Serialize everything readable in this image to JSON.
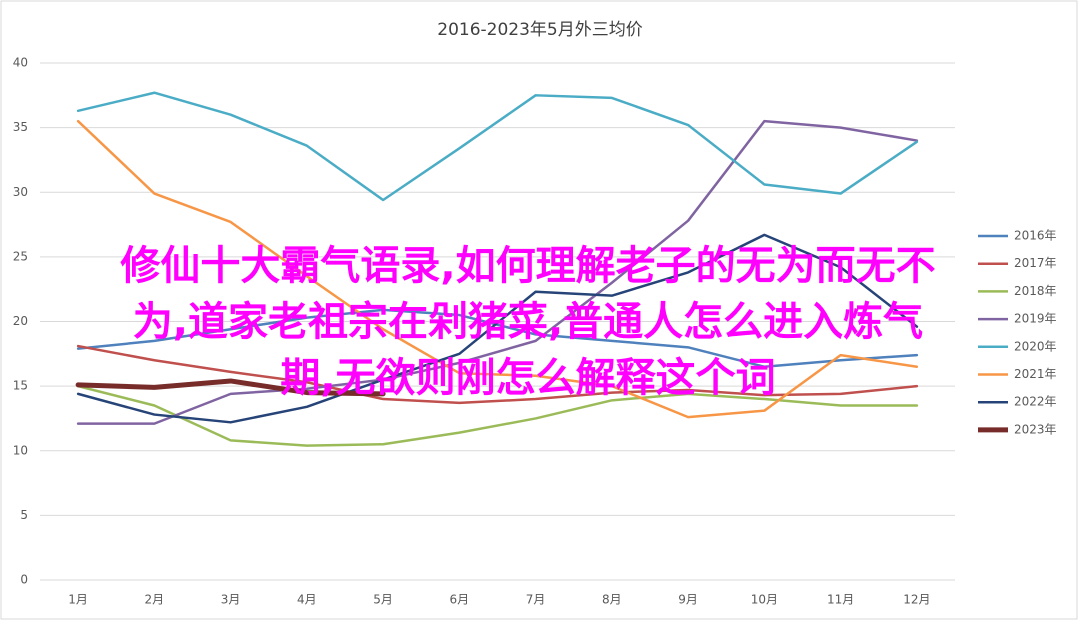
{
  "chart_data": {
    "type": "line",
    "title": "2016-2023年5月外三均价",
    "categories": [
      "1月",
      "2月",
      "3月",
      "4月",
      "5月",
      "6月",
      "7月",
      "8月",
      "9月",
      "10月",
      "11月",
      "12月"
    ],
    "ylim": [
      0,
      40
    ],
    "yticks": [
      0,
      5,
      10,
      15,
      20,
      25,
      30,
      35,
      40
    ],
    "grid": true,
    "legend": "right",
    "series": [
      {
        "name": "2016年",
        "color": "#4f81bd",
        "values": [
          17.9,
          18.5,
          19.4,
          20.3,
          20.9,
          20.5,
          19.0,
          18.5,
          18.0,
          16.5,
          17.0,
          17.4
        ]
      },
      {
        "name": "2017年",
        "color": "#c0504d",
        "values": [
          18.1,
          17.0,
          16.1,
          15.3,
          14.0,
          13.7,
          14.0,
          14.5,
          14.7,
          14.3,
          14.4,
          15.0
        ]
      },
      {
        "name": "2018年",
        "color": "#9bbb59",
        "values": [
          15.0,
          13.5,
          10.8,
          10.4,
          10.5,
          11.4,
          12.5,
          13.9,
          14.4,
          14.0,
          13.5,
          13.5
        ]
      },
      {
        "name": "2019年",
        "color": "#8064a2",
        "values": [
          12.1,
          12.1,
          14.4,
          14.8,
          15.5,
          16.8,
          18.5,
          23.0,
          27.8,
          35.5,
          35.0,
          34.0
        ]
      },
      {
        "name": "2020年",
        "color": "#4bacc6",
        "values": [
          36.3,
          37.7,
          36.0,
          33.6,
          29.4,
          33.4,
          37.5,
          37.3,
          35.2,
          30.6,
          29.9,
          33.9
        ]
      },
      {
        "name": "2021年",
        "color": "#f79646",
        "values": [
          35.5,
          29.9,
          27.7,
          23.5,
          19.4,
          16.0,
          15.8,
          15.0,
          12.6,
          13.1,
          17.4,
          16.5
        ]
      },
      {
        "name": "2022年",
        "color": "#264478",
        "values": [
          14.4,
          12.8,
          12.2,
          13.4,
          15.5,
          17.5,
          22.3,
          22.0,
          23.8,
          26.7,
          24.2,
          19.6
        ]
      },
      {
        "name": "2023年",
        "color": "#772c2a",
        "values": [
          15.1,
          14.9,
          15.4,
          14.5,
          14.4,
          null,
          null,
          null,
          null,
          null,
          null,
          null
        ]
      }
    ]
  },
  "overlay": {
    "lines": [
      "修仙十大霸气语录,如何理解老子的无为而无不",
      "为,道家老祖宗在剁猪菜,普通人怎么进入炼气",
      "期,无欲则刚怎么解释这个词"
    ],
    "color": "#ff00ff"
  }
}
